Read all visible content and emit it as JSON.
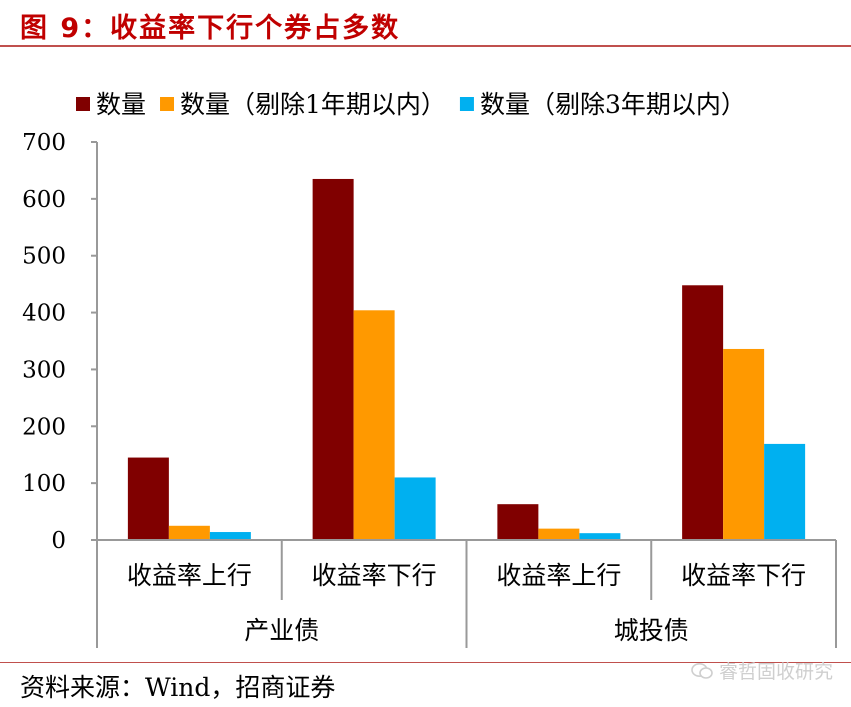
{
  "header": {
    "title": "图  9：收益率下行个券占多数",
    "title_color": "#c00000"
  },
  "footer": {
    "source": "资料来源：Wind，招商证券",
    "watermark": "睿哲固收研究"
  },
  "chart_data": {
    "type": "bar",
    "categories": [
      "收益率上行",
      "收益率下行",
      "收益率上行",
      "收益率下行"
    ],
    "groups": [
      {
        "label": "产业债",
        "categories": [
          "收益率上行",
          "收益率下行"
        ]
      },
      {
        "label": "城投债",
        "categories": [
          "收益率上行",
          "收益率下行"
        ]
      }
    ],
    "series": [
      {
        "name": "数量",
        "color": "#800000",
        "values": [
          145,
          635,
          63,
          448
        ]
      },
      {
        "name": "数量（剔除1年期以内）",
        "color": "#ff9900",
        "values": [
          25,
          404,
          20,
          336
        ]
      },
      {
        "name": "数量（剔除3年期以内）",
        "color": "#00b0f0",
        "values": [
          14,
          110,
          12,
          169
        ]
      }
    ],
    "ylim": [
      0,
      700
    ],
    "yticks": [
      0,
      100,
      200,
      300,
      400,
      500,
      600,
      700
    ],
    "legend_position": "top",
    "grid": false,
    "xlabel": "",
    "ylabel": ""
  }
}
